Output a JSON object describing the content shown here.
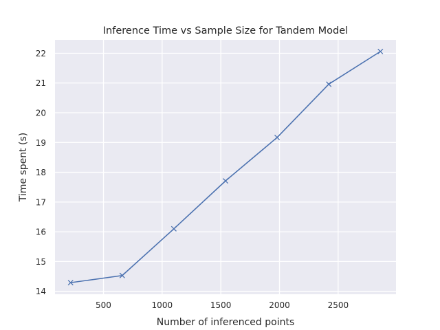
{
  "chart_data": {
    "type": "line",
    "title": "Inference Time vs Sample Size for Tandem Model",
    "xlabel": "Number of inferenced points",
    "ylabel": "Time spent (s)",
    "x": [
      220,
      660,
      1100,
      1540,
      1980,
      2420,
      2860
    ],
    "series": [
      {
        "values": [
          14.29,
          14.53,
          16.1,
          17.71,
          19.17,
          20.96,
          22.06
        ],
        "color": "#4c72b0",
        "marker": "x"
      }
    ],
    "xlim": [
      87,
      2993
    ],
    "ylim": [
      13.9,
      22.45
    ],
    "xticks": [
      500,
      1000,
      1500,
      2000,
      2500
    ],
    "yticks": [
      14,
      15,
      16,
      17,
      18,
      19,
      20,
      21,
      22
    ],
    "grid": true,
    "background": "#eaeaf2",
    "gridColor": "#ffffff"
  }
}
